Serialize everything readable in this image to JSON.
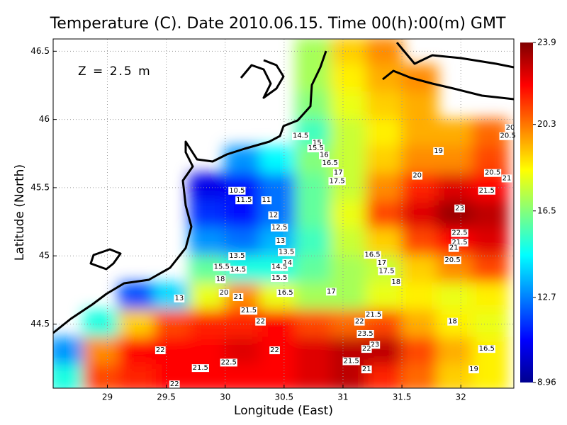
{
  "chart_data": {
    "type": "heatmap",
    "title": "Temperature (C). Date 2010.06.15. Time 00(h):00(m) GMT",
    "xlabel": "Longitude (East)",
    "ylabel": "Latitude (North)",
    "annotation": "Z = 2.5 m",
    "xlim": [
      28.54,
      32.45
    ],
    "ylim": [
      44.03,
      46.59
    ],
    "xticks": [
      29,
      29.5,
      30,
      30.5,
      31,
      31.5,
      32
    ],
    "yticks": [
      44.5,
      45,
      45.5,
      46,
      46.5
    ],
    "grid": true,
    "clim": [
      8.96,
      23.9
    ],
    "cticks": [
      8.96,
      12.7,
      16.5,
      20.3,
      23.9
    ],
    "x": [
      28.65,
      28.95,
      29.25,
      29.55,
      29.85,
      30.15,
      30.45,
      30.75,
      31.05,
      31.35,
      31.65,
      31.95,
      32.25
    ],
    "y": [
      46.5,
      46.3,
      46.1,
      45.9,
      45.7,
      45.5,
      45.3,
      45.1,
      44.9,
      44.7,
      44.5,
      44.3,
      44.1
    ],
    "values": [
      [
        null,
        null,
        null,
        null,
        null,
        null,
        null,
        17,
        19,
        20,
        null,
        null,
        null
      ],
      [
        null,
        null,
        null,
        null,
        null,
        null,
        null,
        17,
        18.5,
        19.5,
        20,
        null,
        null
      ],
      [
        null,
        null,
        null,
        null,
        null,
        null,
        null,
        16.5,
        18,
        19,
        19.5,
        null,
        null
      ],
      [
        null,
        null,
        null,
        null,
        null,
        null,
        null,
        15.5,
        17.5,
        18.5,
        19.5,
        19.5,
        20.5
      ],
      [
        null,
        null,
        null,
        null,
        null,
        13,
        14.5,
        16.5,
        17.5,
        19,
        20,
        20,
        21
      ],
      [
        null,
        null,
        null,
        null,
        10.5,
        11,
        12.5,
        16,
        17.5,
        20,
        21.5,
        22.5,
        22
      ],
      [
        null,
        null,
        null,
        null,
        11.5,
        11,
        12.5,
        16,
        18,
        21,
        22.5,
        23.5,
        23
      ],
      [
        null,
        null,
        null,
        null,
        13,
        12.5,
        13.5,
        15.5,
        17.5,
        19,
        21,
        22,
        22.5
      ],
      [
        null,
        null,
        null,
        null,
        16,
        15,
        15,
        16,
        17,
        17.5,
        19,
        20,
        21
      ],
      [
        null,
        null,
        12,
        14,
        18,
        20,
        18,
        17,
        17,
        18,
        18.5,
        18,
        18.5
      ],
      [
        null,
        15,
        19,
        21,
        21.5,
        21.5,
        22,
        21,
        20.5,
        21,
        19.5,
        18.5,
        18
      ],
      [
        13,
        20,
        22,
        22,
        22,
        22.5,
        22,
        22.5,
        23,
        23,
        21,
        19.5,
        18.5
      ],
      [
        15,
        21,
        21.5,
        22,
        22,
        22,
        22,
        22.5,
        23,
        21.5,
        20.5,
        19,
        18.5
      ]
    ],
    "contour_labels": [
      {
        "x": 30.64,
        "y": 45.88,
        "value": 14.5
      },
      {
        "x": 30.78,
        "y": 45.83,
        "value": 15
      },
      {
        "x": 30.77,
        "y": 45.79,
        "value": 15.5
      },
      {
        "x": 30.84,
        "y": 45.74,
        "value": 16
      },
      {
        "x": 30.89,
        "y": 45.68,
        "value": 16.5
      },
      {
        "x": 30.96,
        "y": 45.61,
        "value": 17
      },
      {
        "x": 30.95,
        "y": 45.55,
        "value": 17.5
      },
      {
        "x": 31.81,
        "y": 45.77,
        "value": 19
      },
      {
        "x": 31.63,
        "y": 45.59,
        "value": 20
      },
      {
        "x": 32.42,
        "y": 45.94,
        "value": 20
      },
      {
        "x": 32.4,
        "y": 45.88,
        "value": 20.5
      },
      {
        "x": 32.27,
        "y": 45.61,
        "value": 20.5
      },
      {
        "x": 32.39,
        "y": 45.57,
        "value": 21
      },
      {
        "x": 32.22,
        "y": 45.48,
        "value": 21.5
      },
      {
        "x": 30.1,
        "y": 45.48,
        "value": 10.5
      },
      {
        "x": 30.16,
        "y": 45.41,
        "value": 11.5
      },
      {
        "x": 30.35,
        "y": 45.41,
        "value": 11
      },
      {
        "x": 30.41,
        "y": 45.3,
        "value": 12
      },
      {
        "x": 30.46,
        "y": 45.21,
        "value": 12.5
      },
      {
        "x": 30.47,
        "y": 45.11,
        "value": 13
      },
      {
        "x": 30.52,
        "y": 45.03,
        "value": 13.5
      },
      {
        "x": 30.1,
        "y": 45.0,
        "value": 13.5
      },
      {
        "x": 30.53,
        "y": 44.95,
        "value": 14
      },
      {
        "x": 30.46,
        "y": 44.92,
        "value": 14.5
      },
      {
        "x": 30.46,
        "y": 44.84,
        "value": 15.5
      },
      {
        "x": 30.51,
        "y": 44.73,
        "value": 16.5
      },
      {
        "x": 29.97,
        "y": 44.92,
        "value": 15.5
      },
      {
        "x": 30.11,
        "y": 44.9,
        "value": 14.5
      },
      {
        "x": 29.96,
        "y": 44.83,
        "value": 18
      },
      {
        "x": 29.99,
        "y": 44.73,
        "value": 20
      },
      {
        "x": 30.11,
        "y": 44.7,
        "value": 21
      },
      {
        "x": 30.9,
        "y": 44.74,
        "value": 17
      },
      {
        "x": 31.25,
        "y": 45.01,
        "value": 16.5
      },
      {
        "x": 31.33,
        "y": 44.95,
        "value": 17
      },
      {
        "x": 31.37,
        "y": 44.89,
        "value": 17.5
      },
      {
        "x": 31.45,
        "y": 44.81,
        "value": 18
      },
      {
        "x": 31.99,
        "y": 45.35,
        "value": 23
      },
      {
        "x": 31.99,
        "y": 45.17,
        "value": 22.5
      },
      {
        "x": 31.99,
        "y": 45.1,
        "value": 21.5
      },
      {
        "x": 31.94,
        "y": 45.06,
        "value": 21
      },
      {
        "x": 31.93,
        "y": 44.97,
        "value": 20.5
      },
      {
        "x": 29.61,
        "y": 44.69,
        "value": 13
      },
      {
        "x": 30.2,
        "y": 44.6,
        "value": 21.5
      },
      {
        "x": 30.3,
        "y": 44.52,
        "value": 22
      },
      {
        "x": 31.14,
        "y": 44.52,
        "value": 22
      },
      {
        "x": 31.26,
        "y": 44.57,
        "value": 21.5
      },
      {
        "x": 31.93,
        "y": 44.52,
        "value": 18
      },
      {
        "x": 31.19,
        "y": 44.43,
        "value": 23.5
      },
      {
        "x": 31.27,
        "y": 44.35,
        "value": 23
      },
      {
        "x": 31.2,
        "y": 44.32,
        "value": 22
      },
      {
        "x": 31.07,
        "y": 44.23,
        "value": 21.5
      },
      {
        "x": 31.2,
        "y": 44.17,
        "value": 21
      },
      {
        "x": 32.22,
        "y": 44.32,
        "value": 16.5
      },
      {
        "x": 32.11,
        "y": 44.17,
        "value": 19
      },
      {
        "x": 29.45,
        "y": 44.31,
        "value": 22
      },
      {
        "x": 30.42,
        "y": 44.31,
        "value": 22
      },
      {
        "x": 30.03,
        "y": 44.22,
        "value": 22.5
      },
      {
        "x": 29.79,
        "y": 44.18,
        "value": 21.5
      },
      {
        "x": 29.57,
        "y": 44.06,
        "value": 22
      }
    ]
  }
}
